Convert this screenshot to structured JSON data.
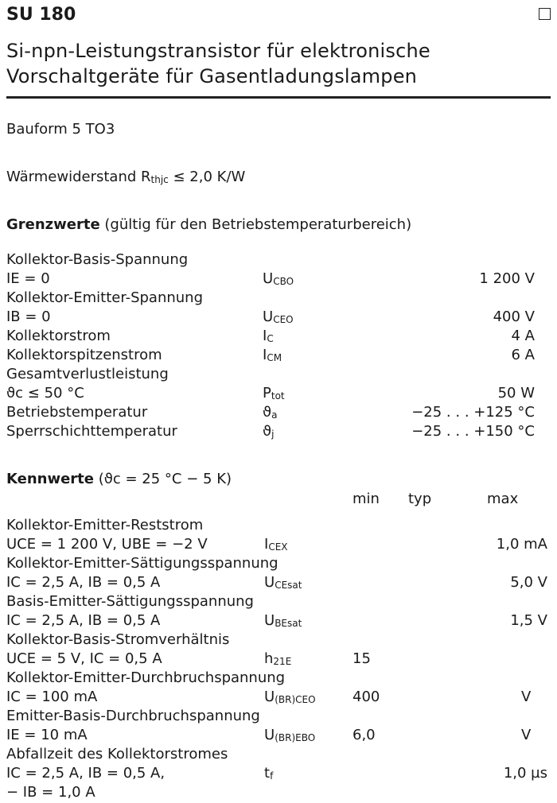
{
  "header": {
    "title": "SU 180",
    "subtitle_line1": "Si-npn-Leistungstransistor für elektronische",
    "subtitle_line2": "Vorschaltgeräte für Gasentladungslampen"
  },
  "bauform": "Bauform 5    TO3",
  "waermewiderstand": {
    "label": "Wärmewiderstand R",
    "sub": "thjc",
    "value": " ≤ 2,0 K/W"
  },
  "grenzwerte": {
    "heading": "Grenzwerte",
    "note": " (gültig für den Betriebstemperaturbereich)",
    "rows": [
      {
        "label": "Kollektor-Basis-Spannung"
      },
      {
        "label": "IE = 0",
        "sym": "U",
        "sub": "CBO",
        "value": "1 200 V"
      },
      {
        "label": "Kollektor-Emitter-Spannung"
      },
      {
        "label": "IB = 0",
        "sym": "U",
        "sub": "CEO",
        "value": "400 V"
      },
      {
        "label": "Kollektorstrom",
        "sym": "I",
        "sub": "C",
        "value": "4 A"
      },
      {
        "label": "Kollektorspitzenstrom",
        "sym": "I",
        "sub": "CM",
        "value": "6 A"
      },
      {
        "label": "Gesamtverlustleistung"
      },
      {
        "label": "ϑc  ≤ 50 °C",
        "sym": "P",
        "sub": "tot",
        "value": "50 W"
      },
      {
        "label": "Betriebstemperatur",
        "sym": "ϑ",
        "sub": "a",
        "value": "−25 . . . +125 °C"
      },
      {
        "label": "Sperrschichttemperatur",
        "sym": "ϑ",
        "sub": "j",
        "value": "−25 . . . +150 °C"
      }
    ]
  },
  "kennwerte": {
    "heading": "Kennwerte",
    "note": " (ϑc = 25 °C − 5 K)",
    "col_min": "min",
    "col_typ": "typ",
    "col_max": "max",
    "rows": [
      {
        "label": "Kollektor-Emitter-Reststrom"
      },
      {
        "label": "UCE = 1 200 V, UBE = −2 V",
        "sym": "I",
        "sub": "CEX",
        "max": "1,0 mA"
      },
      {
        "label": "Kollektor-Emitter-Sättigungsspannung"
      },
      {
        "label": "IC = 2,5 A, IB = 0,5 A",
        "sym": "U",
        "sub": "CEsat",
        "max": "5,0 V"
      },
      {
        "label": "Basis-Emitter-Sättigungsspannung"
      },
      {
        "label": "IC = 2,5 A, IB = 0,5 A",
        "sym": "U",
        "sub": "BEsat",
        "max": "1,5 V"
      },
      {
        "label": "Kollektor-Basis-Stromverhältnis"
      },
      {
        "label": "UCE = 5 V, IC = 0,5 A",
        "sym": "h",
        "sub": "21E",
        "min": "15"
      },
      {
        "label": "Kollektor-Emitter-Durchbruchspannung"
      },
      {
        "label": "IC = 100 mA",
        "sym": "U",
        "sub": "(BR)CEO",
        "min": "400",
        "unit": "V"
      },
      {
        "label": "Emitter-Basis-Durchbruchspannung"
      },
      {
        "label": "IE = 10 mA",
        "sym": "U",
        "sub": "(BR)EBO",
        "min": "6,0",
        "unit": "V"
      },
      {
        "label": "Abfallzeit des Kollektorstromes"
      },
      {
        "label": "IC = 2,5 A, IB = 0,5 A,",
        "sym": "t",
        "sub": "f",
        "max": "1,0 µs"
      },
      {
        "label": "− IB = 1,0 A"
      }
    ]
  }
}
